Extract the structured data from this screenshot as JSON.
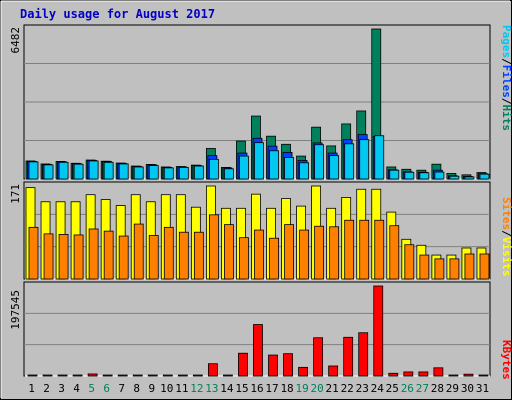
{
  "title": "Daily usage for August 2017",
  "colors": {
    "background": "#c0c0c0",
    "plot_bg": "#c0c0c0",
    "hits": "#00805c",
    "files": "#0040ff",
    "pages": "#00c8f0",
    "visits": "#ffff00",
    "sites": "#ff8000",
    "kbytes": "#ff0000",
    "weekend_label": "#00805c",
    "title": "#0000c8"
  },
  "legend": {
    "pages": "Pages",
    "files": "Files",
    "hits": "Hits",
    "sites": "Sites",
    "visits": "Visits",
    "kbytes": "KBytes",
    "slash": "/"
  },
  "chart_data": [
    {
      "type": "bar",
      "panel": "hits_files_pages",
      "ymax_label": "6482",
      "ylim": [
        0,
        6482
      ],
      "categories": [
        "1",
        "2",
        "3",
        "4",
        "5",
        "6",
        "7",
        "8",
        "9",
        "10",
        "11",
        "12",
        "13",
        "14",
        "15",
        "16",
        "17",
        "18",
        "19",
        "20",
        "21",
        "22",
        "23",
        "24",
        "25",
        "26",
        "27",
        "28",
        "29",
        "30",
        "31"
      ],
      "weekend_days": [
        "5",
        "6",
        "12",
        "13",
        "19",
        "20",
        "26",
        "27"
      ],
      "series": [
        {
          "name": "Hits",
          "values": [
            780,
            650,
            760,
            680,
            820,
            770,
            690,
            560,
            630,
            520,
            540,
            600,
            1320,
            500,
            1640,
            2720,
            1850,
            1500,
            990,
            2240,
            1430,
            2380,
            2940,
            6482,
            520,
            420,
            380,
            640,
            240,
            180,
            280
          ]
        },
        {
          "name": "Files",
          "values": [
            760,
            630,
            740,
            660,
            800,
            750,
            670,
            540,
            610,
            500,
            520,
            580,
            1010,
            480,
            1120,
            1760,
            1420,
            1150,
            800,
            1560,
            1120,
            1700,
            1920,
            1840,
            400,
            310,
            290,
            380,
            140,
            110,
            230
          ]
        },
        {
          "name": "Pages",
          "values": [
            740,
            610,
            720,
            640,
            780,
            720,
            650,
            520,
            580,
            480,
            500,
            560,
            850,
            440,
            990,
            1570,
            1220,
            930,
            700,
            1480,
            1010,
            1520,
            1700,
            1870,
            380,
            290,
            270,
            300,
            120,
            90,
            210
          ]
        }
      ]
    },
    {
      "type": "bar",
      "panel": "visits_sites",
      "ymax_label": "171",
      "ylim": [
        0,
        171
      ],
      "categories": [
        "1",
        "2",
        "3",
        "4",
        "5",
        "6",
        "7",
        "8",
        "9",
        "10",
        "11",
        "12",
        "13",
        "14",
        "15",
        "16",
        "17",
        "18",
        "19",
        "20",
        "21",
        "22",
        "23",
        "24",
        "25",
        "26",
        "27",
        "28",
        "29",
        "30",
        "31"
      ],
      "series": [
        {
          "name": "Visits",
          "values": [
            168,
            142,
            142,
            142,
            155,
            146,
            135,
            155,
            142,
            155,
            155,
            132,
            171,
            130,
            130,
            156,
            130,
            148,
            134,
            171,
            130,
            150,
            165,
            165,
            123,
            73,
            62,
            44,
            44,
            57,
            57
          ]
        },
        {
          "name": "Sites",
          "values": [
            95,
            83,
            82,
            81,
            92,
            88,
            79,
            101,
            80,
            95,
            86,
            86,
            118,
            100,
            76,
            90,
            75,
            100,
            90,
            97,
            96,
            108,
            108,
            108,
            98,
            63,
            44,
            37,
            37,
            46,
            46
          ]
        }
      ]
    },
    {
      "type": "bar",
      "panel": "kbytes",
      "ymax_label": "197545",
      "ylim": [
        0,
        197545
      ],
      "categories": [
        "1",
        "2",
        "3",
        "4",
        "5",
        "6",
        "7",
        "8",
        "9",
        "10",
        "11",
        "12",
        "13",
        "14",
        "15",
        "16",
        "17",
        "18",
        "19",
        "20",
        "21",
        "22",
        "23",
        "24",
        "25",
        "26",
        "27",
        "28",
        "29",
        "30",
        "31"
      ],
      "series": [
        {
          "name": "KBytes",
          "values": [
            1500,
            1500,
            1500,
            1500,
            4500,
            1500,
            1500,
            1500,
            1500,
            1500,
            1500,
            1500,
            27000,
            1500,
            50000,
            113000,
            46000,
            49000,
            19000,
            84000,
            22000,
            85000,
            95000,
            197545,
            6000,
            9000,
            9000,
            18000,
            1500,
            4000,
            1500
          ]
        }
      ]
    }
  ]
}
